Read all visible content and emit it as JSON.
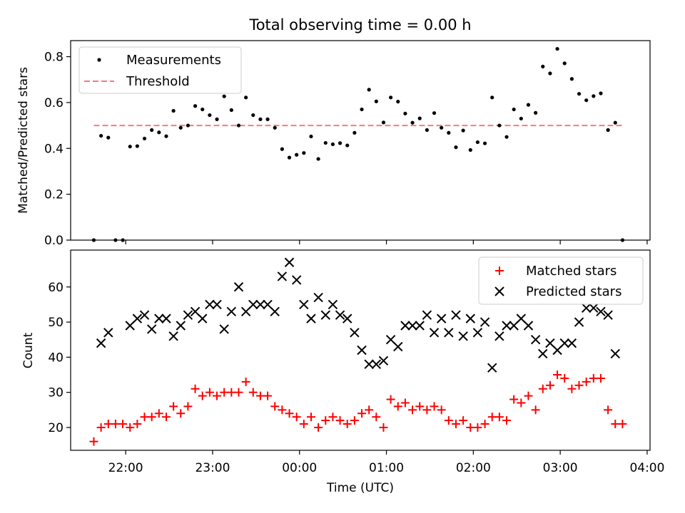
{
  "chart_data": [
    {
      "type": "scatter",
      "title": "Total observing time = 0.00 h",
      "ylabel": "Matched/Predicted stars",
      "ylim": [
        0,
        0.87
      ],
      "yticks": [
        "0.0",
        "0.2",
        "0.4",
        "0.6",
        "0.8"
      ],
      "ytick_values": [
        0,
        0.2,
        0.4,
        0.6,
        0.8
      ],
      "legend": {
        "placement": "upper-left",
        "entries": [
          "Measurements",
          "Threshold"
        ]
      },
      "threshold": {
        "name": "Threshold",
        "value": 0.5,
        "x_start": "21:38",
        "x_end": "03:44",
        "color": "#ff7777"
      },
      "series": [
        {
          "name": "Measurements",
          "color": "#000000",
          "points": [
            [
              "21:38",
              0.0
            ],
            [
              "21:43",
              0.455
            ],
            [
              "21:48",
              0.447
            ],
            [
              "21:53",
              0.0
            ],
            [
              "21:58",
              0.0
            ],
            [
              "22:03",
              0.408
            ],
            [
              "22:08",
              0.41
            ],
            [
              "22:13",
              0.443
            ],
            [
              "22:18",
              0.48
            ],
            [
              "22:23",
              0.47
            ],
            [
              "22:28",
              0.453
            ],
            [
              "22:33",
              0.564
            ],
            [
              "22:38",
              0.49
            ],
            [
              "22:43",
              0.5
            ],
            [
              "22:48",
              0.585
            ],
            [
              "22:53",
              0.57
            ],
            [
              "22:58",
              0.545
            ],
            [
              "23:03",
              0.527
            ],
            [
              "23:08",
              0.627
            ],
            [
              "23:13",
              0.567
            ],
            [
              "23:18",
              0.5
            ],
            [
              "23:23",
              0.622
            ],
            [
              "23:28",
              0.545
            ],
            [
              "23:33",
              0.527
            ],
            [
              "23:38",
              0.527
            ],
            [
              "23:43",
              0.49
            ],
            [
              "23:48",
              0.397
            ],
            [
              "23:53",
              0.36
            ],
            [
              "23:58",
              0.372
            ],
            [
              "00:03",
              0.38
            ],
            [
              "00:08",
              0.452
            ],
            [
              "00:13",
              0.354
            ],
            [
              "00:18",
              0.424
            ],
            [
              "00:23",
              0.418
            ],
            [
              "00:28",
              0.423
            ],
            [
              "00:33",
              0.413
            ],
            [
              "00:38",
              0.468
            ],
            [
              "00:43",
              0.57
            ],
            [
              "00:48",
              0.656
            ],
            [
              "00:53",
              0.605
            ],
            [
              "00:58",
              0.513
            ],
            [
              "01:03",
              0.622
            ],
            [
              "01:08",
              0.604
            ],
            [
              "01:13",
              0.552
            ],
            [
              "01:18",
              0.512
            ],
            [
              "01:23",
              0.531
            ],
            [
              "01:28",
              0.48
            ],
            [
              "01:33",
              0.554
            ],
            [
              "01:38",
              0.49
            ],
            [
              "01:43",
              0.468
            ],
            [
              "01:48",
              0.405
            ],
            [
              "01:53",
              0.478
            ],
            [
              "01:58",
              0.393
            ],
            [
              "02:03",
              0.427
            ],
            [
              "02:08",
              0.422
            ],
            [
              "02:13",
              0.622
            ],
            [
              "02:18",
              0.5
            ],
            [
              "02:23",
              0.45
            ],
            [
              "02:28",
              0.57
            ],
            [
              "02:33",
              0.53
            ],
            [
              "02:38",
              0.59
            ],
            [
              "02:43",
              0.555
            ],
            [
              "02:48",
              0.757
            ],
            [
              "02:53",
              0.727
            ],
            [
              "02:58",
              0.834
            ],
            [
              "03:03",
              0.771
            ],
            [
              "03:08",
              0.703
            ],
            [
              "03:13",
              0.638
            ],
            [
              "03:18",
              0.61
            ],
            [
              "03:23",
              0.628
            ],
            [
              "03:28",
              0.64
            ],
            [
              "03:33",
              0.48
            ],
            [
              "03:38",
              0.512
            ],
            [
              "03:43",
              0.0
            ]
          ]
        }
      ]
    },
    {
      "type": "scatter",
      "xlabel": "Time (UTC)",
      "ylabel": "Count",
      "xlim": [
        "21:22",
        "04:02"
      ],
      "xticks": [
        "22:00",
        "23:00",
        "00:00",
        "01:00",
        "02:00",
        "03:00",
        "04:00"
      ],
      "ylim": [
        13.5,
        70.5
      ],
      "yticks": [
        "20",
        "30",
        "40",
        "50",
        "60"
      ],
      "ytick_values": [
        20,
        30,
        40,
        50,
        60
      ],
      "legend": {
        "placement": "upper-right",
        "entries": [
          "Matched stars",
          "Predicted stars"
        ]
      },
      "series": [
        {
          "name": "Matched stars",
          "marker": "plus",
          "color": "#ff0000",
          "points": [
            [
              "21:38",
              16
            ],
            [
              "21:43",
              20
            ],
            [
              "21:48",
              21
            ],
            [
              "21:53",
              21
            ],
            [
              "21:58",
              21
            ],
            [
              "22:03",
              20
            ],
            [
              "22:08",
              21
            ],
            [
              "22:13",
              23
            ],
            [
              "22:18",
              23
            ],
            [
              "22:23",
              24
            ],
            [
              "22:28",
              23
            ],
            [
              "22:33",
              26
            ],
            [
              "22:38",
              24
            ],
            [
              "22:43",
              26
            ],
            [
              "22:48",
              31
            ],
            [
              "22:53",
              29
            ],
            [
              "22:58",
              30
            ],
            [
              "23:03",
              29
            ],
            [
              "23:08",
              30
            ],
            [
              "23:13",
              30
            ],
            [
              "23:18",
              30
            ],
            [
              "23:23",
              33
            ],
            [
              "23:28",
              30
            ],
            [
              "23:33",
              29
            ],
            [
              "23:38",
              29
            ],
            [
              "23:43",
              26
            ],
            [
              "23:48",
              25
            ],
            [
              "23:53",
              24
            ],
            [
              "23:58",
              23
            ],
            [
              "00:03",
              21
            ],
            [
              "00:08",
              23
            ],
            [
              "00:13",
              20
            ],
            [
              "00:18",
              22
            ],
            [
              "00:23",
              23
            ],
            [
              "00:28",
              22
            ],
            [
              "00:33",
              21
            ],
            [
              "00:38",
              22
            ],
            [
              "00:43",
              24
            ],
            [
              "00:48",
              25
            ],
            [
              "00:53",
              23
            ],
            [
              "00:58",
              20
            ],
            [
              "01:03",
              28
            ],
            [
              "01:08",
              26
            ],
            [
              "01:13",
              27
            ],
            [
              "01:18",
              25
            ],
            [
              "01:23",
              26
            ],
            [
              "01:28",
              25
            ],
            [
              "01:33",
              26
            ],
            [
              "01:38",
              25
            ],
            [
              "01:43",
              22
            ],
            [
              "01:48",
              21
            ],
            [
              "01:53",
              22
            ],
            [
              "01:58",
              20
            ],
            [
              "02:03",
              20
            ],
            [
              "02:08",
              21
            ],
            [
              "02:13",
              23
            ],
            [
              "02:18",
              23
            ],
            [
              "02:23",
              22
            ],
            [
              "02:28",
              28
            ],
            [
              "02:33",
              27
            ],
            [
              "02:38",
              29
            ],
            [
              "02:43",
              25
            ],
            [
              "02:48",
              31
            ],
            [
              "02:53",
              32
            ],
            [
              "02:58",
              35
            ],
            [
              "03:03",
              34
            ],
            [
              "03:08",
              31
            ],
            [
              "03:13",
              32
            ],
            [
              "03:18",
              33
            ],
            [
              "03:23",
              34
            ],
            [
              "03:28",
              34
            ],
            [
              "03:33",
              25
            ],
            [
              "03:38",
              21
            ],
            [
              "03:43",
              21
            ]
          ]
        },
        {
          "name": "Predicted stars",
          "marker": "x",
          "color": "#000000",
          "points": [
            [
              "21:43",
              44
            ],
            [
              "21:48",
              47
            ],
            [
              "22:03",
              49
            ],
            [
              "22:08",
              51
            ],
            [
              "22:13",
              52
            ],
            [
              "22:18",
              48
            ],
            [
              "22:23",
              51
            ],
            [
              "22:28",
              51
            ],
            [
              "22:33",
              46
            ],
            [
              "22:38",
              49
            ],
            [
              "22:43",
              52
            ],
            [
              "22:48",
              53
            ],
            [
              "22:53",
              51
            ],
            [
              "22:58",
              55
            ],
            [
              "23:03",
              55
            ],
            [
              "23:08",
              48
            ],
            [
              "23:13",
              53
            ],
            [
              "23:18",
              60
            ],
            [
              "23:23",
              53
            ],
            [
              "23:28",
              55
            ],
            [
              "23:33",
              55
            ],
            [
              "23:38",
              55
            ],
            [
              "23:43",
              53
            ],
            [
              "23:48",
              63
            ],
            [
              "23:53",
              67
            ],
            [
              "23:58",
              62
            ],
            [
              "00:03",
              55
            ],
            [
              "00:08",
              51
            ],
            [
              "00:13",
              57
            ],
            [
              "00:18",
              52
            ],
            [
              "00:23",
              55
            ],
            [
              "00:28",
              52
            ],
            [
              "00:33",
              51
            ],
            [
              "00:38",
              47
            ],
            [
              "00:43",
              42
            ],
            [
              "00:48",
              38
            ],
            [
              "00:53",
              38
            ],
            [
              "00:58",
              39
            ],
            [
              "01:03",
              45
            ],
            [
              "01:08",
              43
            ],
            [
              "01:13",
              49
            ],
            [
              "01:18",
              49
            ],
            [
              "01:23",
              49
            ],
            [
              "01:28",
              52
            ],
            [
              "01:33",
              47
            ],
            [
              "01:38",
              51
            ],
            [
              "01:43",
              47
            ],
            [
              "01:48",
              52
            ],
            [
              "01:53",
              46
            ],
            [
              "01:58",
              51
            ],
            [
              "02:03",
              47
            ],
            [
              "02:08",
              50
            ],
            [
              "02:13",
              37
            ],
            [
              "02:18",
              46
            ],
            [
              "02:23",
              49
            ],
            [
              "02:28",
              49
            ],
            [
              "02:33",
              51
            ],
            [
              "02:38",
              49
            ],
            [
              "02:43",
              45
            ],
            [
              "02:48",
              41
            ],
            [
              "02:53",
              44
            ],
            [
              "02:58",
              42
            ],
            [
              "03:03",
              44
            ],
            [
              "03:08",
              44
            ],
            [
              "03:13",
              50
            ],
            [
              "03:18",
              54
            ],
            [
              "03:23",
              54
            ],
            [
              "03:28",
              53
            ],
            [
              "03:33",
              52
            ],
            [
              "03:38",
              41
            ]
          ]
        }
      ]
    }
  ]
}
